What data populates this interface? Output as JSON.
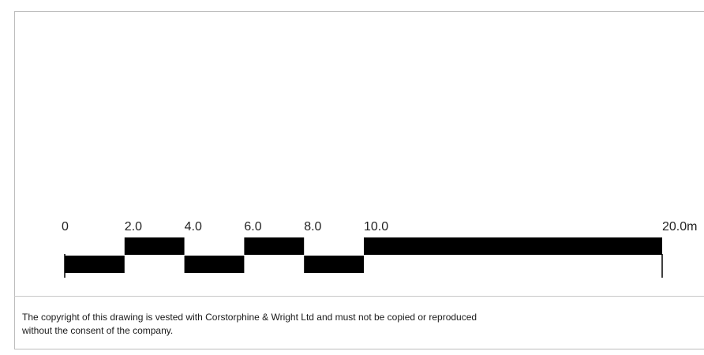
{
  "scale_bar": {
    "labels": [
      "0",
      "2.0",
      "4.0",
      "6.0",
      "8.0",
      "10.0",
      "20.0m"
    ],
    "segments": [
      {
        "from": 0,
        "to": 2,
        "row": "lower"
      },
      {
        "from": 2,
        "to": 4,
        "row": "upper"
      },
      {
        "from": 4,
        "to": 6,
        "row": "lower"
      },
      {
        "from": 6,
        "to": 8,
        "row": "upper"
      },
      {
        "from": 8,
        "to": 10,
        "row": "lower"
      },
      {
        "from": 10,
        "to": 20,
        "row": "upper"
      }
    ],
    "fill_color": "#000000"
  },
  "copyright": {
    "line1": "The copyright of this drawing is vested with Corstorphine & Wright Ltd and must not be copied or reproduced",
    "line2": "without the consent of the company."
  }
}
